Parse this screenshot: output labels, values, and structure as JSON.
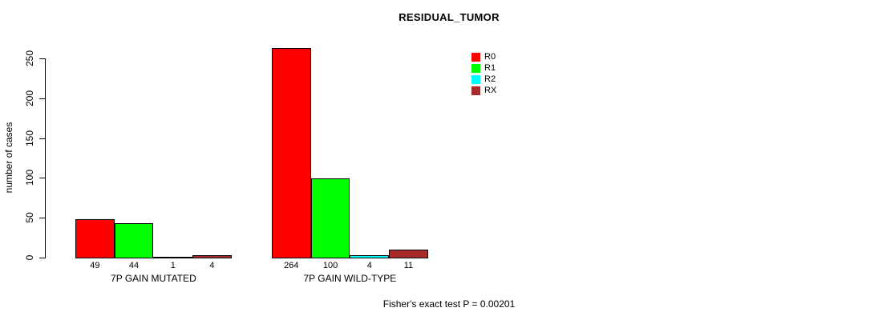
{
  "chart_data": {
    "type": "bar",
    "title": "RESIDUAL_TUMOR",
    "ylabel": "number of cases",
    "ylim": [
      0,
      250
    ],
    "yticks": [
      0,
      50,
      100,
      150,
      200,
      250
    ],
    "grid": false,
    "legend_position": "top-right",
    "categories": [
      "7P GAIN MUTATED",
      "7P GAIN WILD-TYPE"
    ],
    "series": [
      {
        "name": "R0",
        "color": "#FF0000",
        "values": [
          49,
          264
        ]
      },
      {
        "name": "R1",
        "color": "#00FF00",
        "values": [
          44,
          100
        ]
      },
      {
        "name": "R2",
        "color": "#00FFFF",
        "values": [
          1,
          4
        ]
      },
      {
        "name": "RX",
        "color": "#A52A2A",
        "values": [
          4,
          11
        ]
      }
    ],
    "bar_value_labels": [
      [
        "49",
        "44",
        "1",
        "4"
      ],
      [
        "264",
        "100",
        "4",
        "11"
      ]
    ],
    "annotation": "Fisher's exact test P = 0.00201"
  }
}
